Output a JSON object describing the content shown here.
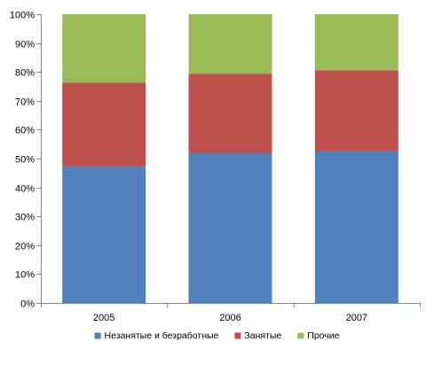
{
  "chart_data": {
    "type": "bar",
    "stacked": "percent",
    "categories": [
      "2005",
      "2006",
      "2007"
    ],
    "series": [
      {
        "name": "Незанятые и безработные",
        "color": "#4F81BD",
        "values": [
          47.3,
          52.0,
          52.6
        ]
      },
      {
        "name": "Занятые",
        "color": "#C0504D",
        "values": [
          29.0,
          27.4,
          28.0
        ]
      },
      {
        "name": "Прочие",
        "color": "#9BBB59",
        "values": [
          23.7,
          20.6,
          19.4
        ]
      }
    ],
    "ylim": [
      0,
      100
    ],
    "y_ticks": [
      "0%",
      "10%",
      "20%",
      "30%",
      "40%",
      "50%",
      "60%",
      "70%",
      "80%",
      "90%",
      "100%"
    ],
    "grid": false,
    "legend_position": "bottom"
  }
}
